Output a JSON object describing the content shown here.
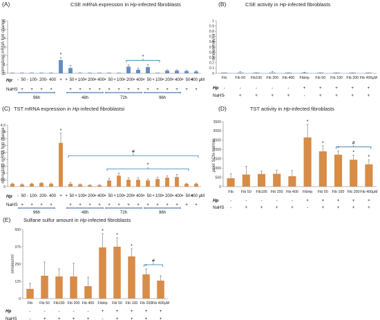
{
  "chart_data": [
    {
      "panel": "(A)",
      "type": "bar",
      "title": "CSE mRNA expression in Hp-infected fibroblasts",
      "title_parts": [
        "CSE mRNA expression in ",
        "Hp",
        "-infected fibroblasts"
      ],
      "ylabel": "normalized mRNA fold change",
      "ylim": [
        0,
        6
      ],
      "yticks": [
        "0",
        "1",
        "2",
        "3",
        "4",
        "5",
        "6"
      ],
      "color": "#5b86bd",
      "values": [
        0.05,
        0.05,
        0.05,
        0.05,
        0.05,
        1.5,
        0.6,
        0.05,
        0.05,
        0.05,
        0.05,
        0.05,
        0.75,
        0.4,
        0.7,
        0.05,
        0.3,
        0.3,
        0.25,
        0.2
      ],
      "errors": [
        0,
        0,
        0,
        0,
        0,
        0.3,
        0.3,
        0,
        0,
        0,
        0,
        0,
        0.2,
        0.2,
        0.3,
        0,
        0.1,
        0.1,
        0.1,
        0.1
      ],
      "stars": [
        "",
        "",
        "",
        "",
        "",
        "*",
        "",
        "",
        "",
        "",
        "",
        "",
        "",
        "",
        "",
        "",
        "",
        "",
        "",
        ""
      ],
      "bracket": {
        "from": 12,
        "to": 15,
        "mark": "*"
      },
      "hp_label": "Hp",
      "nahs_label": "NaHS",
      "hp_row": [
        "-",
        "-",
        "-",
        "-",
        "-",
        "+",
        "+",
        "+",
        "+",
        "+",
        "+",
        "+",
        "+",
        "+",
        "+",
        "+",
        "+",
        "+",
        "+",
        "+"
      ],
      "dose_row": [
        "",
        "50",
        "100",
        "200",
        "400",
        "",
        "50",
        "100",
        "200",
        "400",
        "50",
        "100",
        "200",
        "400",
        "50",
        "100",
        "200",
        "400",
        "50",
        "400 μM"
      ],
      "nahs_row": [
        "",
        "+",
        "+",
        "+",
        "+",
        "",
        "+",
        "+",
        "+",
        "+",
        "+",
        "+",
        "+",
        "+",
        "+",
        "+",
        "+",
        "+",
        "+",
        "+"
      ],
      "time_groups": [
        {
          "label": "96h",
          "from": 1,
          "to": 4
        },
        {
          "label": "48h",
          "from": 6,
          "to": 9
        },
        {
          "label": "72h",
          "from": 10,
          "to": 13
        },
        {
          "label": "96h",
          "from": 14,
          "to": 17
        }
      ]
    },
    {
      "panel": "(B)",
      "type": "bar",
      "title": "CSE activity in Hp-infected fibroblasts",
      "title_parts": [
        "CSE activity in ",
        "Hp",
        "-infected fibroblasts"
      ],
      "ylabel": "nmoles/min/ml",
      "ylim": [
        0,
        1
      ],
      "yticks": [
        "0",
        "0.1",
        "0.2",
        "0.3",
        "0.4",
        "0.5",
        "0.6",
        "0.7",
        "0.8",
        "0.9",
        "1"
      ],
      "color": "#5b86bd",
      "categories": [
        "Fib",
        "Fib 50",
        "Fib100",
        "Fib 200",
        "Fib 400",
        "FibHp",
        "Fib 50",
        "Fib 100",
        "Fib 200",
        "Fib 400μM"
      ],
      "values": [
        0.002,
        0.01,
        0.005,
        0.01,
        0.003,
        0.008,
        0.002,
        0.003,
        0.002,
        0.002
      ],
      "errors": [
        0.003,
        0.02,
        0.005,
        0.025,
        0.004,
        0.015,
        0.004,
        0.004,
        0.003,
        0.002
      ],
      "hp_label": "Hp",
      "nahs_label": "NaHS",
      "hp_row": [
        "-",
        "-",
        "-",
        "-",
        "-",
        "+",
        "+",
        "+",
        "+",
        "+"
      ],
      "nahs_row": [
        "-",
        "+",
        "+",
        "+",
        "+",
        "-",
        "+",
        "+",
        "+",
        "+"
      ]
    },
    {
      "panel": "(C)",
      "type": "bar",
      "title": "TST mRNA expression in Hp-infected fibroblastsi",
      "title_parts": [
        "TST mRNA expression in ",
        "Hp",
        "-infected fibroblastsi"
      ],
      "ylabel": "normalized mRNA fold change",
      "ylim": [
        0,
        4.5
      ],
      "yticks": [
        "0",
        "0.5",
        "1",
        "1.5",
        "2",
        "2.5",
        "3",
        "3.5",
        "4",
        "4.5"
      ],
      "color": "#d5863e",
      "values": [
        0.2,
        0.15,
        0.2,
        0.25,
        0.2,
        3.2,
        0.2,
        0.15,
        0.1,
        0.1,
        0.45,
        0.8,
        0.5,
        0.5,
        0.45,
        0.55,
        0.65,
        0.7,
        0.2,
        0.2
      ],
      "errors": [
        0.05,
        0.05,
        0.05,
        0.05,
        0.05,
        0.7,
        0.1,
        0.05,
        0.05,
        0.05,
        0.15,
        0.2,
        0.15,
        0.15,
        0.1,
        0.15,
        0.15,
        0.2,
        0.05,
        0.05
      ],
      "stars": [
        "",
        "",
        "",
        "",
        "",
        "*",
        "",
        "",
        "",
        "",
        "",
        "",
        "",
        "",
        "",
        "",
        "",
        "",
        "",
        ""
      ],
      "brackets": [
        {
          "from": 6,
          "to": 19,
          "mark": "#"
        },
        {
          "from": 10,
          "to": 18,
          "mark": "*"
        }
      ],
      "hp_label": "Hp",
      "nahs_label": "NaHS",
      "hp_row": [
        "-",
        "-",
        "-",
        "-",
        "-",
        "+",
        "+",
        "+",
        "+",
        "+",
        "+",
        "+",
        "+",
        "+",
        "+",
        "+",
        "+",
        "+",
        "+",
        "+"
      ],
      "dose_row": [
        "",
        "50",
        "100",
        "200",
        "400",
        "",
        "50",
        "100",
        "200",
        "400",
        "50",
        "100",
        "200",
        "400",
        "50",
        "100",
        "200",
        "400",
        "50",
        "400 μM"
      ],
      "nahs_row": [
        "",
        "+",
        "+",
        "+",
        "+",
        "",
        "+",
        "+",
        "+",
        "+",
        "+",
        "+",
        "+",
        "+",
        "+",
        "+",
        "+",
        "+",
        "+",
        "+"
      ],
      "time_groups": [
        {
          "label": "96h",
          "from": 1,
          "to": 4
        },
        {
          "label": "48h",
          "from": 6,
          "to": 9
        },
        {
          "label": "72h",
          "from": 10,
          "to": 13
        },
        {
          "label": "96h",
          "from": 14,
          "to": 17
        }
      ]
    },
    {
      "panel": "(D)",
      "type": "bar",
      "title": "TST activity in Hp-infected fibroblasts",
      "title_parts": [
        "TST activity in ",
        "Hp",
        "-infected fibroblasts"
      ],
      "ylabel": "μmol SCN-/ml/min",
      "ylim": [
        0,
        3500
      ],
      "yticks": [
        "0",
        "500",
        "1000",
        "1500",
        "2000",
        "2500",
        "3000",
        "3500"
      ],
      "color": "#d5863e",
      "categories": [
        "Fib",
        "Fib 50",
        "Fib100",
        "Fib 200",
        "Fib 400",
        "FibHp",
        "Fib 50",
        "Fib 100",
        "Fib 200",
        "Fib 400μM"
      ],
      "values": [
        450,
        650,
        680,
        690,
        560,
        2650,
        1900,
        1720,
        1450,
        1200
      ],
      "errors": [
        250,
        450,
        150,
        200,
        300,
        700,
        300,
        200,
        250,
        250
      ],
      "stars": [
        "",
        "",
        "",
        "",
        "",
        "*",
        "*",
        "*",
        "*",
        "*"
      ],
      "bracket": {
        "from": 7,
        "to": 9,
        "mark": "#"
      },
      "hp_label": "Hp",
      "nahs_label": "NaHS",
      "hp_row": [
        "-",
        "-",
        "-",
        "-",
        "-",
        "+",
        "+",
        "+",
        "+",
        "+"
      ],
      "nahs_row": [
        "-",
        "+",
        "+",
        "+",
        "+",
        "-",
        "+",
        "+",
        "+",
        "+"
      ]
    },
    {
      "panel": "(E)",
      "type": "bar",
      "title": "Sulfane sulfur amount in Hp-infected fibroblasts",
      "title_parts": [
        "Sulfane sulfur amount in ",
        "Hp",
        "-infected fibroblasts"
      ],
      "ylabel": "nmoles/ml",
      "ylim": [
        0,
        500
      ],
      "ytick_values": [
        0,
        125,
        250,
        375,
        500
      ],
      "yticks": [
        "0",
        "125",
        "250",
        "375",
        "500"
      ],
      "color": "#d5863e",
      "categories": [
        "Fib",
        "Fib 50",
        "Fib100",
        "Fib 200",
        "Fib 400",
        "FibHp",
        "Fib 50",
        "Fib 100",
        "Fib 200",
        "Fib 400μM"
      ],
      "values": [
        70,
        165,
        160,
        160,
        90,
        370,
        375,
        305,
        175,
        130
      ],
      "errors": [
        40,
        100,
        55,
        95,
        65,
        100,
        65,
        55,
        40,
        35
      ],
      "stars": [
        "",
        "",
        "",
        "",
        "",
        "*",
        "*",
        "*",
        "*",
        ""
      ],
      "bracket": {
        "from": 8,
        "to": 9,
        "mark": "#"
      },
      "hp_label": "Hp",
      "nahs_label": "NaHS",
      "hp_row": [
        "-",
        "-",
        "-",
        "-",
        "-",
        "+",
        "+",
        "+",
        "+",
        "+"
      ],
      "nahs_row": [
        "-",
        "+",
        "+",
        "+",
        "+",
        "-",
        "+",
        "+",
        "+",
        "+"
      ]
    }
  ]
}
